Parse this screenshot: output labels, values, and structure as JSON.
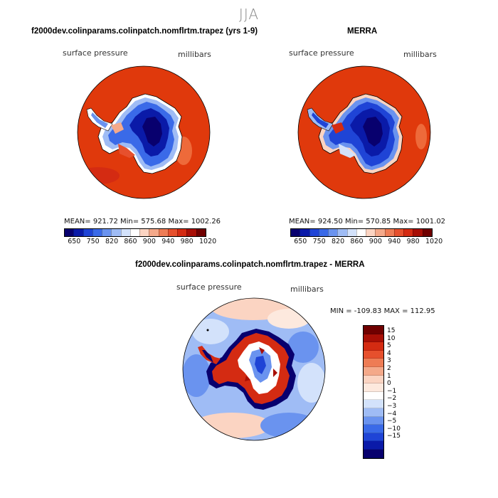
{
  "figure": {
    "season": "JJA"
  },
  "panels": {
    "left": {
      "title": "f2000dev.colinparams.colinpatch.nomflrtm.trapez (yrs 1-9)",
      "variable": "surface pressure",
      "units": "millibars",
      "stats": "MEAN= 921.72   Min= 575.68   Max= 1002.26",
      "ticks": [
        "650",
        "750",
        "820",
        "860",
        "900",
        "940",
        "980",
        "1020"
      ]
    },
    "right": {
      "title": "MERRA",
      "variable": "surface pressure",
      "units": "millibars",
      "stats": "MEAN= 924.50   Min= 570.85   Max= 1001.02",
      "ticks": [
        "650",
        "750",
        "820",
        "860",
        "900",
        "940",
        "980",
        "1020"
      ]
    },
    "diff": {
      "title": "f2000dev.colinparams.colinpatch.nomflrtm.trapez - MERRA",
      "variable": "surface pressure",
      "units": "millibars",
      "stats": "MIN = -109.83  MAX = 112.95",
      "ticks": [
        "15",
        "10",
        "5",
        "4",
        "3",
        "2",
        "1",
        "0",
        "-1",
        "-2",
        "-3",
        "-4",
        "-5",
        "-10",
        "-15"
      ]
    }
  },
  "colors": {
    "abs_scale": [
      "#08006e",
      "#0a1aa8",
      "#1f44d6",
      "#3a6ae8",
      "#6a93ef",
      "#9fbcf5",
      "#d3e2fb",
      "#ffffff",
      "#fbd4c2",
      "#f4a98a",
      "#ee7c55",
      "#e6502d",
      "#d42b12",
      "#a80f06",
      "#700000"
    ],
    "diff_scale": [
      "#700000",
      "#a80f06",
      "#d42b12",
      "#e6502d",
      "#ee7c55",
      "#f4a98a",
      "#fbd4c2",
      "#fde9de",
      "#ffffff",
      "#d3e2fb",
      "#9fbcf5",
      "#6a93ef",
      "#3a6ae8",
      "#1f44d6",
      "#0a1aa8",
      "#08006e"
    ],
    "ocean_red": "#e0390c"
  }
}
